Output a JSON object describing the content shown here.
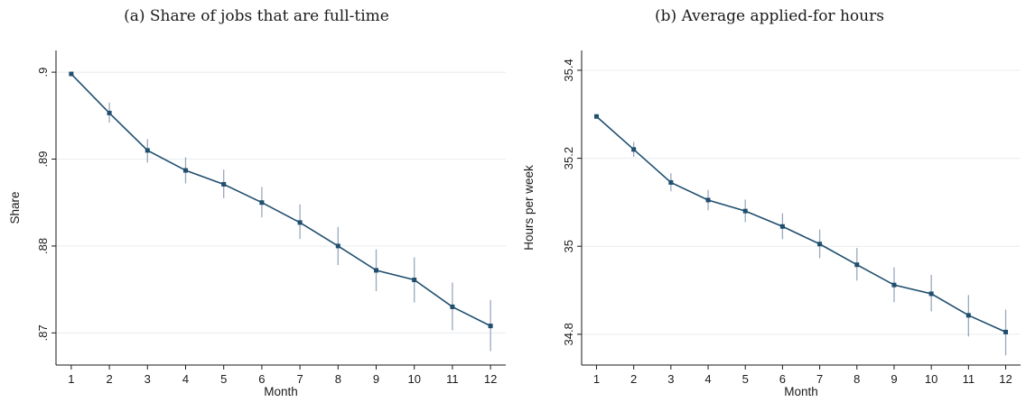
{
  "chart_data": [
    {
      "type": "line",
      "title": "(a) Share of jobs that are full-time",
      "xlabel": "Month",
      "ylabel": "Share",
      "x": [
        1,
        2,
        3,
        4,
        5,
        6,
        7,
        8,
        9,
        10,
        11,
        12
      ],
      "xticks": [
        "1",
        "2",
        "3",
        "4",
        "5",
        "6",
        "7",
        "8",
        "9",
        "10",
        "11",
        "12"
      ],
      "yticks": [
        {
          "value": 0.87,
          "label": ".87"
        },
        {
          "value": 0.88,
          "label": ".88"
        },
        {
          "value": 0.89,
          "label": ".89"
        },
        {
          "value": 0.9,
          "label": ".9"
        }
      ],
      "ylim": [
        0.8663,
        0.9025
      ],
      "xlim": [
        0.6,
        12.4
      ],
      "grid": true,
      "line_color": "#1f4e6e",
      "series": [
        {
          "values": [
            0.8998,
            0.8953,
            0.891,
            0.8887,
            0.8871,
            0.885,
            0.8827,
            0.88,
            0.8772,
            0.8761,
            0.873,
            0.8708
          ],
          "ci_low": [
            0.8998,
            0.8942,
            0.8896,
            0.8872,
            0.8855,
            0.8833,
            0.8808,
            0.8778,
            0.8748,
            0.8735,
            0.8703,
            0.8679
          ],
          "ci_high": [
            0.8998,
            0.8965,
            0.8923,
            0.8902,
            0.8888,
            0.8868,
            0.8848,
            0.8822,
            0.8796,
            0.8787,
            0.8758,
            0.8738
          ]
        }
      ]
    },
    {
      "type": "line",
      "title": "(b) Average applied-for hours",
      "xlabel": "Month",
      "ylabel": "Hours per week",
      "x": [
        1,
        2,
        3,
        4,
        5,
        6,
        7,
        8,
        9,
        10,
        11,
        12
      ],
      "xticks": [
        "1",
        "2",
        "3",
        "4",
        "5",
        "6",
        "7",
        "8",
        "9",
        "10",
        "11",
        "12"
      ],
      "yticks": [
        {
          "value": 34.8,
          "label": "34.8"
        },
        {
          "value": 35.0,
          "label": "35"
        },
        {
          "value": 35.2,
          "label": "35.2"
        },
        {
          "value": 35.4,
          "label": "35.4"
        }
      ],
      "ylim": [
        34.73,
        35.445
      ],
      "xlim": [
        0.6,
        12.4
      ],
      "grid": true,
      "line_color": "#1f4e6e",
      "series": [
        {
          "values": [
            35.295,
            35.22,
            35.145,
            35.105,
            35.08,
            35.045,
            35.005,
            34.958,
            34.912,
            34.892,
            34.843,
            34.805
          ],
          "ci_low": [
            35.295,
            35.203,
            35.125,
            35.082,
            35.055,
            35.016,
            34.973,
            34.922,
            34.873,
            34.852,
            34.795,
            34.752
          ],
          "ci_high": [
            35.295,
            35.237,
            35.166,
            35.128,
            35.106,
            35.075,
            35.038,
            34.996,
            34.952,
            34.935,
            34.889,
            34.856
          ]
        }
      ]
    }
  ]
}
